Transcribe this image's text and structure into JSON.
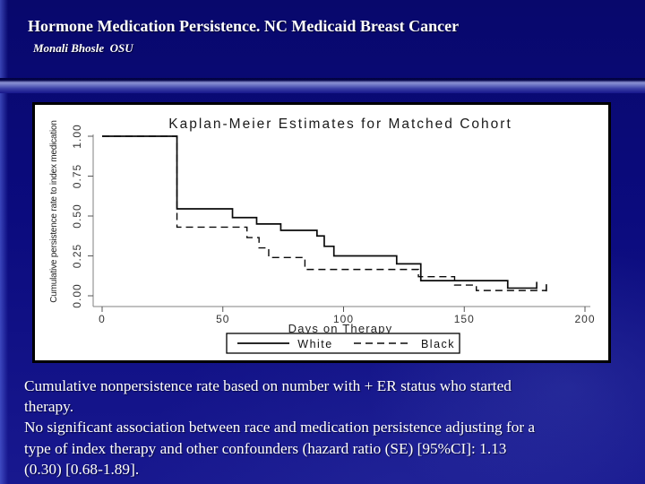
{
  "slide": {
    "title": "Hormone Medication Persistence. NC Medicaid Breast Cancer",
    "subtitle": "Monali Bhosle  OSU",
    "body_lines": [
      "Cumulative nonpersistence rate based on number with + ER status who started",
      "therapy.",
      "No significant association between race and medication persistence adjusting for a",
      "type of index therapy and other confounders (hazard ratio (SE) [95%CI]: 1.13",
      "(0.30) [0.68-1.89]."
    ]
  },
  "colors": {
    "background_navy": "#0b0b7e",
    "band_highlight": "#8a90d2",
    "panel_background": "#ffffff",
    "curve_color": "#0a0a0a",
    "axis_color": "#808080",
    "text_color": "#ffffff"
  },
  "chart_data": {
    "type": "line",
    "subtype": "kaplan-meier-step",
    "title": "Kaplan-Meier Estimates for Matched Cohort",
    "xlabel": "Days on Therapy",
    "ylabel": "Cumulative persistence rate to index medication",
    "xlim": [
      0,
      200
    ],
    "ylim": [
      0,
      1
    ],
    "x_ticks": [
      "0",
      "50",
      "100",
      "150",
      "200"
    ],
    "y_ticks": [
      "0.00",
      "0.25",
      "0.50",
      "0.75",
      "1.00"
    ],
    "grid": false,
    "legend_position": "bottom",
    "legend": [
      {
        "name": "White",
        "style": "solid"
      },
      {
        "name": "Black",
        "style": "dashed"
      }
    ],
    "series": [
      {
        "name": "White",
        "style": "solid",
        "steps": [
          [
            0,
            1.0
          ],
          [
            31,
            0.545
          ],
          [
            54,
            0.49
          ],
          [
            64,
            0.45
          ],
          [
            74,
            0.41
          ],
          [
            89,
            0.375
          ],
          [
            92,
            0.31
          ],
          [
            96,
            0.25
          ],
          [
            122,
            0.2
          ],
          [
            132,
            0.095
          ],
          [
            168,
            0.048
          ]
        ],
        "end_day": 180,
        "censor_days": [
          180
        ]
      },
      {
        "name": "Black",
        "style": "dashed",
        "steps": [
          [
            0,
            1.0
          ],
          [
            31,
            0.43
          ],
          [
            60,
            0.365
          ],
          [
            65,
            0.3
          ],
          [
            69,
            0.24
          ],
          [
            84,
            0.165
          ],
          [
            131,
            0.12
          ],
          [
            146,
            0.067
          ],
          [
            155,
            0.033
          ]
        ],
        "end_day": 184,
        "censor_days": [
          184
        ]
      }
    ]
  }
}
